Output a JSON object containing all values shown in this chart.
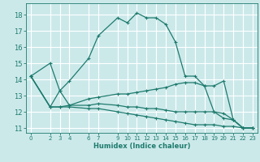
{
  "xlabel": "Humidex (Indice chaleur)",
  "bg_color": "#cce9ea",
  "grid_color": "#ffffff",
  "line_color": "#1e7b6e",
  "xlim": [
    -0.5,
    23.5
  ],
  "ylim": [
    10.7,
    18.7
  ],
  "xticks": [
    0,
    2,
    3,
    4,
    6,
    7,
    9,
    10,
    11,
    12,
    13,
    14,
    15,
    16,
    17,
    18,
    19,
    20,
    21,
    22,
    23
  ],
  "yticks": [
    11,
    12,
    13,
    14,
    15,
    16,
    17,
    18
  ],
  "series": [
    {
      "x": [
        0,
        2,
        3,
        4,
        6,
        7,
        9,
        10,
        11,
        12,
        13,
        14,
        15,
        16,
        17,
        18,
        19,
        20,
        21,
        22,
        23
      ],
      "y": [
        14.2,
        15.0,
        13.3,
        13.9,
        15.3,
        16.7,
        17.8,
        17.5,
        18.1,
        17.8,
        17.8,
        17.4,
        16.3,
        14.2,
        14.2,
        13.6,
        12.0,
        11.6,
        11.5,
        11.0,
        11.0
      ]
    },
    {
      "x": [
        0,
        2,
        3,
        4,
        6,
        7,
        9,
        10,
        11,
        12,
        13,
        14,
        15,
        16,
        17,
        18,
        19,
        20,
        21,
        22,
        23
      ],
      "y": [
        14.2,
        12.3,
        13.3,
        12.4,
        12.8,
        12.9,
        13.1,
        13.1,
        13.2,
        13.3,
        13.4,
        13.5,
        13.7,
        13.8,
        13.8,
        13.6,
        13.6,
        13.9,
        11.5,
        11.0,
        11.0
      ]
    },
    {
      "x": [
        0,
        2,
        3,
        4,
        6,
        7,
        9,
        10,
        11,
        12,
        13,
        14,
        15,
        16,
        17,
        18,
        19,
        20,
        21,
        22,
        23
      ],
      "y": [
        14.2,
        12.3,
        12.3,
        12.4,
        12.4,
        12.5,
        12.4,
        12.3,
        12.3,
        12.2,
        12.2,
        12.1,
        12.0,
        12.0,
        12.0,
        12.0,
        12.0,
        11.9,
        11.5,
        11.0,
        11.0
      ]
    },
    {
      "x": [
        0,
        2,
        3,
        4,
        6,
        7,
        9,
        10,
        11,
        12,
        13,
        14,
        15,
        16,
        17,
        18,
        19,
        20,
        21,
        22,
        23
      ],
      "y": [
        14.2,
        12.3,
        12.3,
        12.3,
        12.2,
        12.2,
        12.0,
        11.9,
        11.8,
        11.7,
        11.6,
        11.5,
        11.4,
        11.3,
        11.2,
        11.2,
        11.2,
        11.1,
        11.1,
        11.0,
        11.0
      ]
    }
  ]
}
